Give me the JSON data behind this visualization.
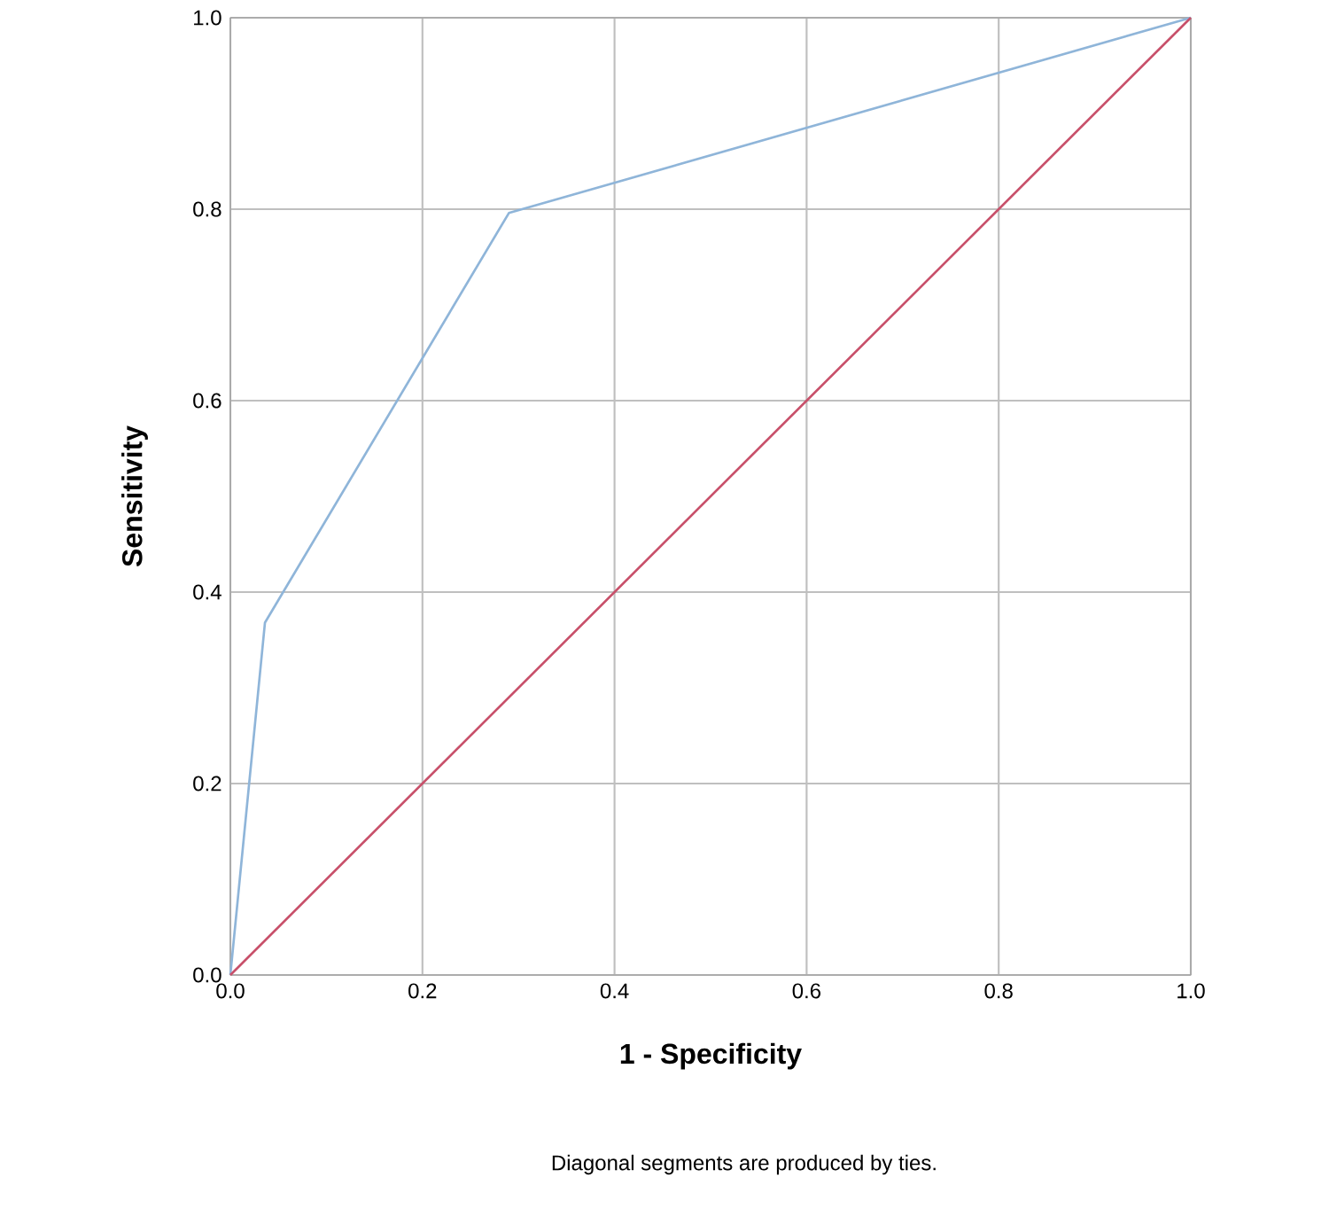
{
  "chart_data": {
    "type": "line",
    "xlabel": "1 - Specificity",
    "ylabel": "Sensitivity",
    "xlim": [
      0,
      1
    ],
    "ylim": [
      0,
      1
    ],
    "xticks": [
      {
        "value": 0,
        "label": "0.0"
      },
      {
        "value": 0.2,
        "label": "0.2"
      },
      {
        "value": 0.4,
        "label": "0.4"
      },
      {
        "value": 0.6,
        "label": "0.6"
      },
      {
        "value": 0.8,
        "label": "0.8"
      },
      {
        "value": 1,
        "label": "1.0"
      }
    ],
    "yticks": [
      {
        "value": 0,
        "label": "0.0"
      },
      {
        "value": 0.2,
        "label": "0.2"
      },
      {
        "value": 0.4,
        "label": "0.4"
      },
      {
        "value": 0.6,
        "label": "0.6"
      },
      {
        "value": 0.8,
        "label": "0.8"
      },
      {
        "value": 1,
        "label": "1.0"
      }
    ],
    "grid": true,
    "marker": "none",
    "line_style": "solid",
    "series": [
      {
        "color": "#8fb5d9",
        "x": [
          0,
          0.036,
          0.29,
          1
        ],
        "values": [
          0,
          0.368,
          0.796,
          1
        ]
      },
      {
        "color": "#c8506a",
        "x": [
          0,
          1
        ],
        "values": [
          0,
          1
        ]
      }
    ],
    "annotations": [
      "Diagonal segments are produced by ties."
    ]
  }
}
